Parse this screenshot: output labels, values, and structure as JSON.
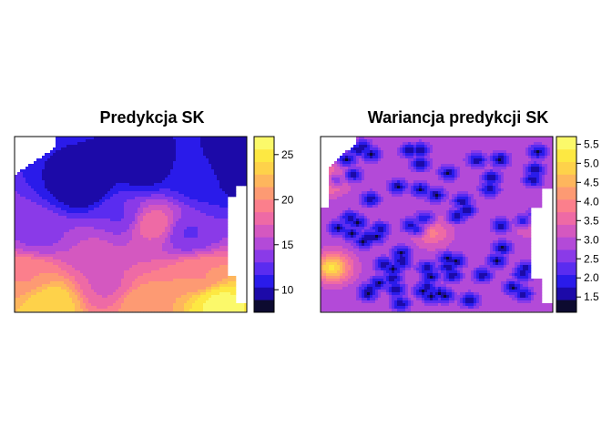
{
  "chart_data": [
    {
      "type": "heatmap",
      "title": "Predykcja SK",
      "colorbar": {
        "ticks": [
          "10",
          "15",
          "20",
          "25"
        ],
        "tick_values": [
          10,
          15,
          20,
          25
        ],
        "range": [
          7.5,
          27.0
        ],
        "palette": [
          "#0d0b30",
          "#1c0aa8",
          "#2a1bea",
          "#5a2cf0",
          "#8a3ae8",
          "#b34ad8",
          "#d458c0",
          "#ee6aa5",
          "#fb7f8c",
          "#fd9a73",
          "#feb65d",
          "#fed24a",
          "#fde842",
          "#fbf96a"
        ]
      },
      "field_description_seeds": [
        {
          "x": 0.3,
          "y": 0.3,
          "value": 9
        },
        {
          "x": 0.55,
          "y": 0.18,
          "value": 9.5
        },
        {
          "x": 0.8,
          "y": 0.25,
          "value": 11
        },
        {
          "x": 0.95,
          "y": 0.2,
          "value": 9
        },
        {
          "x": 0.1,
          "y": 0.55,
          "value": 14
        },
        {
          "x": 0.45,
          "y": 0.45,
          "value": 13
        },
        {
          "x": 0.6,
          "y": 0.5,
          "value": 18
        },
        {
          "x": 0.75,
          "y": 0.55,
          "value": 13
        },
        {
          "x": 0.05,
          "y": 0.8,
          "value": 20
        },
        {
          "x": 0.15,
          "y": 0.95,
          "value": 24
        },
        {
          "x": 0.4,
          "y": 0.85,
          "value": 17
        },
        {
          "x": 0.55,
          "y": 0.95,
          "value": 21
        },
        {
          "x": 0.8,
          "y": 0.8,
          "value": 20
        },
        {
          "x": 0.88,
          "y": 0.95,
          "value": 26
        },
        {
          "x": 0.35,
          "y": 0.65,
          "value": 16
        }
      ]
    },
    {
      "type": "heatmap",
      "title": "Wariancja predykcji SK",
      "colorbar": {
        "ticks": [
          "1.5",
          "2.0",
          "2.5",
          "3.0",
          "3.5",
          "4.0",
          "4.5",
          "5.0",
          "5.5"
        ],
        "tick_values": [
          1.5,
          2.0,
          2.5,
          3.0,
          3.5,
          4.0,
          4.5,
          5.0,
          5.5
        ],
        "range": [
          1.1,
          5.7
        ],
        "palette": [
          "#0d0b30",
          "#1c0aa8",
          "#2a1bea",
          "#5a2cf0",
          "#8a3ae8",
          "#b34ad8",
          "#d458c0",
          "#ee6aa5",
          "#fb7f8c",
          "#fd9a73",
          "#feb65d",
          "#fed24a",
          "#fde842",
          "#fbf96a"
        ]
      },
      "field_description_seeds": [
        {
          "x": 0.05,
          "y": 0.75,
          "value": 5.2
        },
        {
          "x": 0.03,
          "y": 0.25,
          "value": 4.3
        },
        {
          "x": 0.48,
          "y": 0.55,
          "value": 3.9
        },
        {
          "x": 0.92,
          "y": 0.5,
          "value": 3.6
        }
      ]
    }
  ]
}
